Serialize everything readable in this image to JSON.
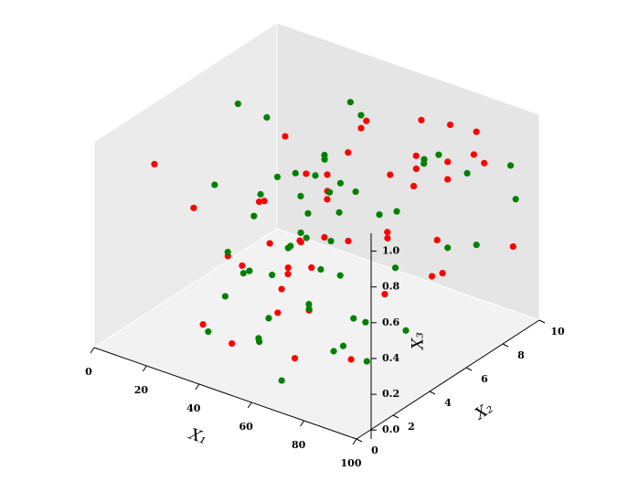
{
  "chart_data": {
    "type": "scatter3d",
    "xlabel": "X₁",
    "ylabel": "X₂",
    "zlabel": "X₃",
    "xlim": [
      0,
      100
    ],
    "ylim": [
      0,
      10
    ],
    "zlim": [
      -0.05,
      1.1
    ],
    "xticks": [
      0,
      20,
      40,
      60,
      80,
      100
    ],
    "yticks": [
      0,
      2,
      4,
      6,
      8,
      10
    ],
    "zticks": [
      {
        "value": 0,
        "label": "0.0"
      },
      {
        "value": 0.2,
        "label": "0.2"
      },
      {
        "value": 0.4,
        "label": "0.4"
      },
      {
        "value": 0.6,
        "label": "0.6"
      },
      {
        "value": 0.8,
        "label": "0.8"
      },
      {
        "value": 1.0,
        "label": "1.0"
      }
    ],
    "series": [
      {
        "color": "#ff0000",
        "x": [
          16,
          24,
          44,
          35.5,
          31,
          48,
          46,
          48,
          62,
          73,
          76,
          60,
          79,
          82,
          79,
          71,
          67,
          73,
          72,
          54,
          61,
          47,
          42,
          30,
          32,
          53,
          50.5,
          37,
          39,
          62,
          56,
          70,
          68,
          90,
          60,
          48,
          46,
          64.5,
          62,
          61,
          63,
          38,
          49,
          73,
          84,
          73,
          84
        ],
        "y": [
          1,
          2,
          1,
          3,
          6,
          8,
          8,
          7,
          9,
          9,
          10,
          9,
          8,
          9,
          10,
          6,
          8,
          7,
          9,
          5,
          4,
          6,
          3,
          5,
          7,
          2,
          4,
          6,
          7,
          5,
          8,
          6,
          9,
          10,
          2,
          5,
          4,
          1,
          7,
          3,
          1,
          0.5,
          0.5,
          0.5,
          2,
          8,
          7
        ],
        "z": [
          0.99,
          0.72,
          0.62,
          0.39,
          0.89,
          0.93,
          0.88,
          0.82,
          0.94,
          0.97,
          0.88,
          0.73,
          0.86,
          0.85,
          0.72,
          0.88,
          0.76,
          0.76,
          0.66,
          0.86,
          0.87,
          0.62,
          0.78,
          0.59,
          0.62,
          0.67,
          0.54,
          0.33,
          0.3,
          0.53,
          0.35,
          0.52,
          0.3,
          0.31,
          0.57,
          0.31,
          0.33,
          0.54,
          0.1,
          0.27,
          0.4,
          0.24,
          0.19,
          0.23,
          0.18,
          0.19,
          0.33
        ]
      },
      {
        "color": "#008000",
        "x": [
          13,
          24,
          28,
          39,
          39,
          53,
          35,
          21,
          42.5,
          32,
          28.6,
          40,
          16,
          34,
          66,
          30,
          60.6,
          51.6,
          46,
          80.5,
          56,
          77,
          68.6,
          72.5,
          96,
          91,
          30,
          60,
          40,
          60,
          34.5,
          79,
          83,
          37,
          55.7,
          36,
          26,
          58.5,
          52,
          73,
          43,
          52.6,
          47,
          68,
          71,
          68.6,
          77,
          40,
          55.7,
          49,
          70.4,
          81,
          90,
          68
        ],
        "y": [
          6,
          6,
          10,
          9,
          7,
          5,
          5,
          8,
          6,
          2,
          5,
          3,
          9,
          8,
          4,
          10,
          3,
          6,
          9,
          5,
          10,
          7,
          9,
          10,
          9,
          10,
          7,
          3,
          5,
          2,
          8,
          8,
          9,
          2,
          0.5,
          3,
          6,
          4,
          6,
          6,
          1,
          2,
          5,
          2,
          4,
          5,
          6,
          0.5,
          1,
          2,
          3,
          2,
          2,
          0.5
        ],
        "z": [
          0.98,
          0.96,
          0.8,
          0.85,
          0.76,
          0.94,
          0.75,
          0.5,
          0.73,
          0.89,
          0.62,
          0.69,
          0.28,
          0.46,
          0.94,
          0.31,
          0.81,
          0.57,
          0.33,
          0.79,
          0.6,
          0.93,
          0.78,
          0.63,
          0.86,
          0.58,
          0.28,
          0.67,
          0.39,
          0.68,
          0.19,
          0.38,
          0.35,
          0.54,
          0.63,
          0.35,
          0.09,
          0.42,
          0.22,
          0.37,
          0.39,
          0.25,
          0.1,
          0.38,
          0.21,
          0.11,
          0.04,
          0.21,
          0.22,
          0.1,
          0.09,
          0.24,
          0.2,
          0.08
        ]
      }
    ]
  }
}
